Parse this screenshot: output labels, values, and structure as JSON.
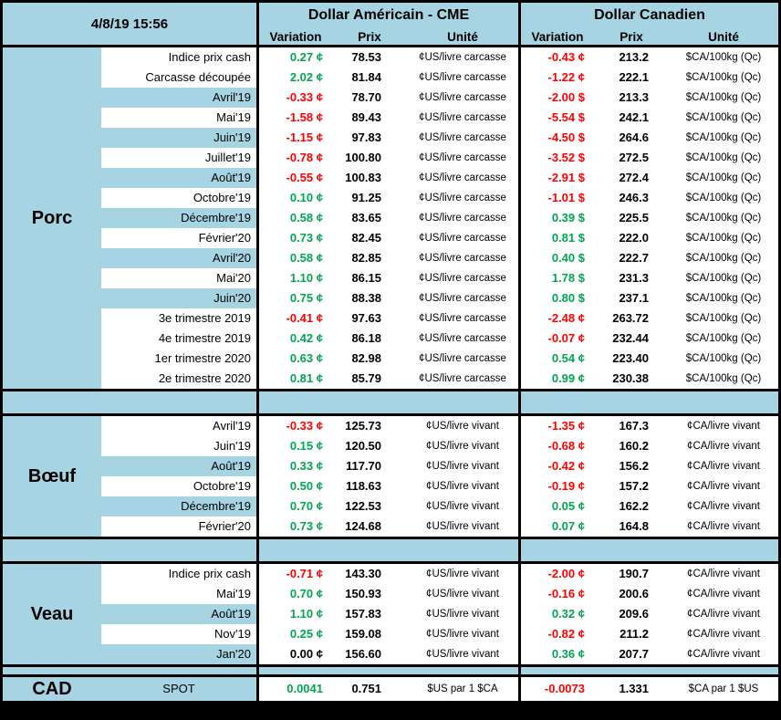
{
  "timestamp": "4/8/19 15:56",
  "header": {
    "us_title": "Dollar Américain - CME",
    "ca_title": "Dollar Canadien",
    "col_variation": "Variation",
    "col_prix": "Prix",
    "col_unite": "Unité"
  },
  "colors": {
    "header_blue": "#a6d4e2",
    "positive_green": "#00a651",
    "negative_red": "#ff0000",
    "border_black": "#000000"
  },
  "sections": [
    {
      "id": "porc",
      "name": "Porc",
      "rows": [
        {
          "label": "Indice prix cash",
          "shaded": false,
          "us": {
            "variation": "0.27 ¢",
            "trend": "up",
            "prix": "78.53",
            "unite": "¢US/livre carcasse"
          },
          "ca": {
            "variation": "-0.43 ¢",
            "trend": "down",
            "prix": "213.2",
            "unite": "$CA/100kg (Qc)"
          }
        },
        {
          "label": "Carcasse découpée",
          "shaded": false,
          "us": {
            "variation": "2.02 ¢",
            "trend": "up",
            "prix": "81.84",
            "unite": "¢US/livre carcasse"
          },
          "ca": {
            "variation": "-1.22 ¢",
            "trend": "down",
            "prix": "222.1",
            "unite": "$CA/100kg (Qc)"
          }
        },
        {
          "label": "Avril'19",
          "shaded": true,
          "us": {
            "variation": "-0.33 ¢",
            "trend": "down",
            "prix": "78.70",
            "unite": "¢US/livre carcasse"
          },
          "ca": {
            "variation": "-2.00 $",
            "trend": "down",
            "prix": "213.3",
            "unite": "$CA/100kg (Qc)"
          }
        },
        {
          "label": "Mai'19",
          "shaded": false,
          "us": {
            "variation": "-1.58 ¢",
            "trend": "down",
            "prix": "89.43",
            "unite": "¢US/livre carcasse"
          },
          "ca": {
            "variation": "-5.54 $",
            "trend": "down",
            "prix": "242.1",
            "unite": "$CA/100kg (Qc)"
          }
        },
        {
          "label": "Juin'19",
          "shaded": true,
          "us": {
            "variation": "-1.15 ¢",
            "trend": "down",
            "prix": "97.83",
            "unite": "¢US/livre carcasse"
          },
          "ca": {
            "variation": "-4.50 $",
            "trend": "down",
            "prix": "264.6",
            "unite": "$CA/100kg (Qc)"
          }
        },
        {
          "label": "Juillet'19",
          "shaded": false,
          "us": {
            "variation": "-0.78 ¢",
            "trend": "down",
            "prix": "100.80",
            "unite": "¢US/livre carcasse"
          },
          "ca": {
            "variation": "-3.52 $",
            "trend": "down",
            "prix": "272.5",
            "unite": "$CA/100kg (Qc)"
          }
        },
        {
          "label": "Août'19",
          "shaded": true,
          "us": {
            "variation": "-0.55 ¢",
            "trend": "down",
            "prix": "100.83",
            "unite": "¢US/livre carcasse"
          },
          "ca": {
            "variation": "-2.91 $",
            "trend": "down",
            "prix": "272.4",
            "unite": "$CA/100kg (Qc)"
          }
        },
        {
          "label": "Octobre'19",
          "shaded": false,
          "us": {
            "variation": "0.10 ¢",
            "trend": "up",
            "prix": "91.25",
            "unite": "¢US/livre carcasse"
          },
          "ca": {
            "variation": "-1.01 $",
            "trend": "down",
            "prix": "246.3",
            "unite": "$CA/100kg (Qc)"
          }
        },
        {
          "label": "Décembre'19",
          "shaded": true,
          "us": {
            "variation": "0.58 ¢",
            "trend": "up",
            "prix": "83.65",
            "unite": "¢US/livre carcasse"
          },
          "ca": {
            "variation": "0.39 $",
            "trend": "up",
            "prix": "225.5",
            "unite": "$CA/100kg (Qc)"
          }
        },
        {
          "label": "Février'20",
          "shaded": false,
          "us": {
            "variation": "0.73 ¢",
            "trend": "up",
            "prix": "82.45",
            "unite": "¢US/livre carcasse"
          },
          "ca": {
            "variation": "0.81 $",
            "trend": "up",
            "prix": "222.0",
            "unite": "$CA/100kg (Qc)"
          }
        },
        {
          "label": "Avril'20",
          "shaded": true,
          "us": {
            "variation": "0.58 ¢",
            "trend": "up",
            "prix": "82.85",
            "unite": "¢US/livre carcasse"
          },
          "ca": {
            "variation": "0.40 $",
            "trend": "up",
            "prix": "222.7",
            "unite": "$CA/100kg (Qc)"
          }
        },
        {
          "label": "Mai'20",
          "shaded": false,
          "us": {
            "variation": "1.10 ¢",
            "trend": "up",
            "prix": "86.15",
            "unite": "¢US/livre carcasse"
          },
          "ca": {
            "variation": "1.78 $",
            "trend": "up",
            "prix": "231.3",
            "unite": "$CA/100kg (Qc)"
          }
        },
        {
          "label": "Juin'20",
          "shaded": true,
          "us": {
            "variation": "0.75 ¢",
            "trend": "up",
            "prix": "88.38",
            "unite": "¢US/livre carcasse"
          },
          "ca": {
            "variation": "0.80 $",
            "trend": "up",
            "prix": "237.1",
            "unite": "$CA/100kg (Qc)"
          }
        },
        {
          "label": "3e trimestre 2019",
          "shaded": false,
          "us": {
            "variation": "-0.41 ¢",
            "trend": "down",
            "prix": "97.63",
            "unite": "¢US/livre carcasse"
          },
          "ca": {
            "variation": "-2.48 ¢",
            "trend": "down",
            "prix": "263.72",
            "unite": "$CA/100kg (Qc)"
          }
        },
        {
          "label": "4e trimestre 2019",
          "shaded": false,
          "us": {
            "variation": "0.42 ¢",
            "trend": "up",
            "prix": "86.18",
            "unite": "¢US/livre carcasse"
          },
          "ca": {
            "variation": "-0.07 ¢",
            "trend": "down",
            "prix": "232.44",
            "unite": "$CA/100kg (Qc)"
          }
        },
        {
          "label": "1er trimestre 2020",
          "shaded": false,
          "us": {
            "variation": "0.63 ¢",
            "trend": "up",
            "prix": "82.98",
            "unite": "¢US/livre carcasse"
          },
          "ca": {
            "variation": "0.54 ¢",
            "trend": "up",
            "prix": "223.40",
            "unite": "$CA/100kg (Qc)"
          }
        },
        {
          "label": "2e trimestre 2020",
          "shaded": false,
          "us": {
            "variation": "0.81 ¢",
            "trend": "up",
            "prix": "85.79",
            "unite": "¢US/livre carcasse"
          },
          "ca": {
            "variation": "0.99 ¢",
            "trend": "up",
            "prix": "230.38",
            "unite": "$CA/100kg (Qc)"
          }
        }
      ]
    },
    {
      "id": "boeuf",
      "name": "Bœuf",
      "rows": [
        {
          "label": "Avril'19",
          "shaded": false,
          "us": {
            "variation": "-0.33 ¢",
            "trend": "down",
            "prix": "125.73",
            "unite": "¢US/livre vivant"
          },
          "ca": {
            "variation": "-1.35 ¢",
            "trend": "down",
            "prix": "167.3",
            "unite": "¢CA/livre vivant"
          }
        },
        {
          "label": "Juin'19",
          "shaded": false,
          "us": {
            "variation": "0.15 ¢",
            "trend": "up",
            "prix": "120.50",
            "unite": "¢US/livre vivant"
          },
          "ca": {
            "variation": "-0.68 ¢",
            "trend": "down",
            "prix": "160.2",
            "unite": "¢CA/livre vivant"
          }
        },
        {
          "label": "Août'19",
          "shaded": true,
          "us": {
            "variation": "0.33 ¢",
            "trend": "up",
            "prix": "117.70",
            "unite": "¢US/livre vivant"
          },
          "ca": {
            "variation": "-0.42 ¢",
            "trend": "down",
            "prix": "156.2",
            "unite": "¢CA/livre vivant"
          }
        },
        {
          "label": "Octobre'19",
          "shaded": false,
          "us": {
            "variation": "0.50 ¢",
            "trend": "up",
            "prix": "118.63",
            "unite": "¢US/livre vivant"
          },
          "ca": {
            "variation": "-0.19 ¢",
            "trend": "down",
            "prix": "157.2",
            "unite": "¢CA/livre vivant"
          }
        },
        {
          "label": "Décembre'19",
          "shaded": true,
          "us": {
            "variation": "0.70 ¢",
            "trend": "up",
            "prix": "122.53",
            "unite": "¢US/livre vivant"
          },
          "ca": {
            "variation": "0.05 ¢",
            "trend": "up",
            "prix": "162.2",
            "unite": "¢CA/livre vivant"
          }
        },
        {
          "label": "Février'20",
          "shaded": false,
          "us": {
            "variation": "0.73 ¢",
            "trend": "up",
            "prix": "124.68",
            "unite": "¢US/livre vivant"
          },
          "ca": {
            "variation": "0.07 ¢",
            "trend": "up",
            "prix": "164.8",
            "unite": "¢CA/livre vivant"
          }
        }
      ]
    },
    {
      "id": "veau",
      "name": "Veau",
      "rows": [
        {
          "label": "Indice prix cash",
          "shaded": false,
          "us": {
            "variation": "-0.71 ¢",
            "trend": "down",
            "prix": "143.30",
            "unite": "¢US/livre vivant"
          },
          "ca": {
            "variation": "-2.00 ¢",
            "trend": "down",
            "prix": "190.7",
            "unite": "¢CA/livre vivant"
          }
        },
        {
          "label": "Mai'19",
          "shaded": false,
          "us": {
            "variation": "0.70 ¢",
            "trend": "up",
            "prix": "150.93",
            "unite": "¢US/livre vivant"
          },
          "ca": {
            "variation": "-0.16 ¢",
            "trend": "down",
            "prix": "200.6",
            "unite": "¢CA/livre vivant"
          }
        },
        {
          "label": "Août'19",
          "shaded": true,
          "us": {
            "variation": "1.10 ¢",
            "trend": "up",
            "prix": "157.83",
            "unite": "¢US/livre vivant"
          },
          "ca": {
            "variation": "0.32 ¢",
            "trend": "up",
            "prix": "209.6",
            "unite": "¢CA/livre vivant"
          }
        },
        {
          "label": "Nov'19",
          "shaded": false,
          "us": {
            "variation": "0.25 ¢",
            "trend": "up",
            "prix": "159.08",
            "unite": "¢US/livre vivant"
          },
          "ca": {
            "variation": "-0.82 ¢",
            "trend": "down",
            "prix": "211.2",
            "unite": "¢CA/livre vivant"
          }
        },
        {
          "label": "Jan'20",
          "shaded": true,
          "us": {
            "variation": "0.00 ¢",
            "trend": "neutral",
            "prix": "156.60",
            "unite": "¢US/livre vivant"
          },
          "ca": {
            "variation": "0.36 ¢",
            "trend": "up",
            "prix": "207.7",
            "unite": "¢CA/livre vivant"
          }
        }
      ]
    },
    {
      "id": "cad",
      "name": "CAD",
      "rows": [
        {
          "label": "SPOT",
          "shaded": true,
          "us": {
            "variation": "0.0041",
            "trend": "up",
            "prix": "0.751",
            "unite": "$US par 1 $CA"
          },
          "ca": {
            "variation": "-0.0073",
            "trend": "down",
            "prix": "1.331",
            "unite": "$CA par 1 $US"
          }
        }
      ]
    }
  ]
}
